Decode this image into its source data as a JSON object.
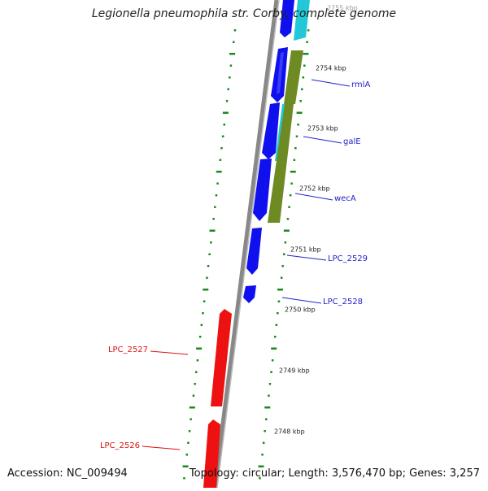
{
  "title": "Legionella pneumophila str. Corby, complete genome",
  "footer": {
    "accession": "Accession: NC_009494",
    "summary": "Topology: circular; Length: 3,576,470 bp; Genes: 3,257"
  },
  "scale_ticks": [
    "2755 kbp",
    "2754 kbp",
    "2753 kbp",
    "2752 kbp",
    "2751 kbp",
    "2750 kbp",
    "2749 kbp",
    "2748 kbp"
  ],
  "genes_right": [
    {
      "name": "rmlA",
      "color": "#2222cc"
    },
    {
      "name": "galE",
      "color": "#2222cc"
    },
    {
      "name": "wecA",
      "color": "#2222cc"
    },
    {
      "name": "LPC_2529",
      "color": "#2222cc"
    },
    {
      "name": "LPC_2528",
      "color": "#2222cc"
    }
  ],
  "genes_left": [
    {
      "name": "LPC_2527",
      "color": "#dd1111"
    },
    {
      "name": "LPC_2526",
      "color": "#dd1111"
    }
  ],
  "colors": {
    "forward_cds": "#1010ee",
    "reverse_cds": "#ee1111",
    "feature_cyan": "#22c8d8",
    "feature_olive": "#6e8a22",
    "backbone": "#888888",
    "dotted_track": "#1a8a1a"
  }
}
